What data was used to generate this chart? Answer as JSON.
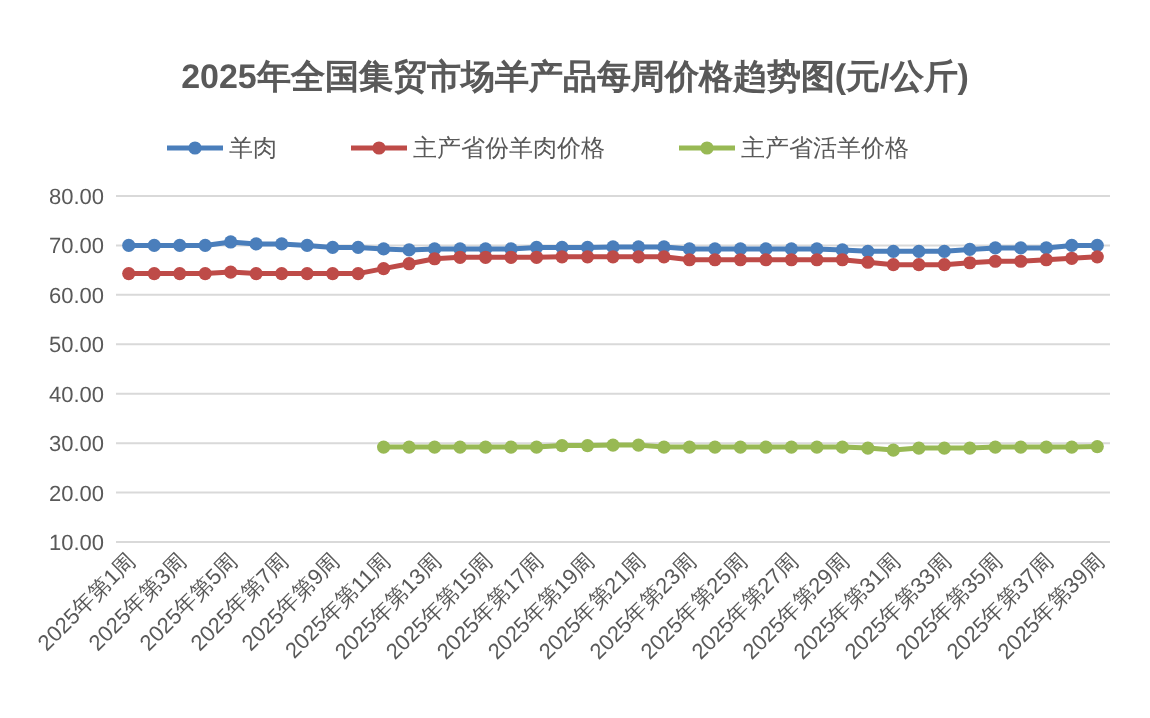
{
  "chart_data": {
    "type": "line",
    "title": "2025年全国集贸市场羊产品每周价格趋势图(元/公斤)",
    "categories": [
      "2025年第1周",
      null,
      "2025年第3周",
      null,
      "2025年第5周",
      null,
      "2025年第7周",
      null,
      "2025年第9周",
      null,
      "2025年第11周",
      null,
      "2025年第13周",
      null,
      "2025年第15周",
      null,
      "2025年第17周",
      null,
      "2025年第19周",
      null,
      "2025年第21周",
      null,
      "2025年第23周",
      null,
      "2025年第25周",
      null,
      "2025年第27周",
      null,
      "2025年第29周",
      null,
      "2025年第31周",
      null,
      "2025年第33周",
      null,
      "2025年第35周",
      null,
      "2025年第37周",
      null,
      "2025年第39周"
    ],
    "series": [
      {
        "name": "羊肉",
        "color": "#4a7ebb",
        "values": [
          70,
          70,
          70,
          70,
          70.7,
          70.3,
          70.3,
          70,
          69.6,
          69.6,
          69.3,
          69.1,
          69.3,
          69.3,
          69.3,
          69.3,
          69.6,
          69.6,
          69.6,
          69.7,
          69.7,
          69.7,
          69.3,
          69.3,
          69.3,
          69.3,
          69.3,
          69.3,
          69.1,
          68.8,
          68.8,
          68.8,
          68.8,
          69.2,
          69.5,
          69.5,
          69.5,
          70,
          70
        ]
      },
      {
        "name": "主产省份羊肉价格",
        "color": "#be4b48",
        "values": [
          64.3,
          64.3,
          64.3,
          64.3,
          64.6,
          64.3,
          64.3,
          64.3,
          64.3,
          64.3,
          65.3,
          66.3,
          67.3,
          67.6,
          67.6,
          67.6,
          67.6,
          67.7,
          67.7,
          67.7,
          67.7,
          67.7,
          67.1,
          67.1,
          67.1,
          67.1,
          67.1,
          67.1,
          67.1,
          66.6,
          66.1,
          66.1,
          66.1,
          66.5,
          66.8,
          66.8,
          67.1,
          67.4,
          67.7
        ]
      },
      {
        "name": "主产省活羊价格",
        "color": "#98b954",
        "values": [
          null,
          null,
          null,
          null,
          null,
          null,
          null,
          null,
          null,
          null,
          29.2,
          29.2,
          29.2,
          29.2,
          29.2,
          29.2,
          29.2,
          29.5,
          29.5,
          29.6,
          29.6,
          29.2,
          29.2,
          29.2,
          29.2,
          29.2,
          29.2,
          29.2,
          29.2,
          29.0,
          28.6,
          29.0,
          29.0,
          29.0,
          29.2,
          29.2,
          29.2,
          29.2,
          29.3
        ]
      }
    ],
    "ylim": [
      10,
      80
    ],
    "yticks": [
      {
        "value": 10,
        "label": "10.00"
      },
      {
        "value": 20,
        "label": "20.00"
      },
      {
        "value": 30,
        "label": "30.00"
      },
      {
        "value": 40,
        "label": "40.00"
      },
      {
        "value": 50,
        "label": "50.00"
      },
      {
        "value": 60,
        "label": "60.00"
      },
      {
        "value": 70,
        "label": "70.00"
      },
      {
        "value": 80,
        "label": "80.00"
      }
    ],
    "grid": "y",
    "legend": "top",
    "marker": "circle",
    "line_style": "solid"
  }
}
